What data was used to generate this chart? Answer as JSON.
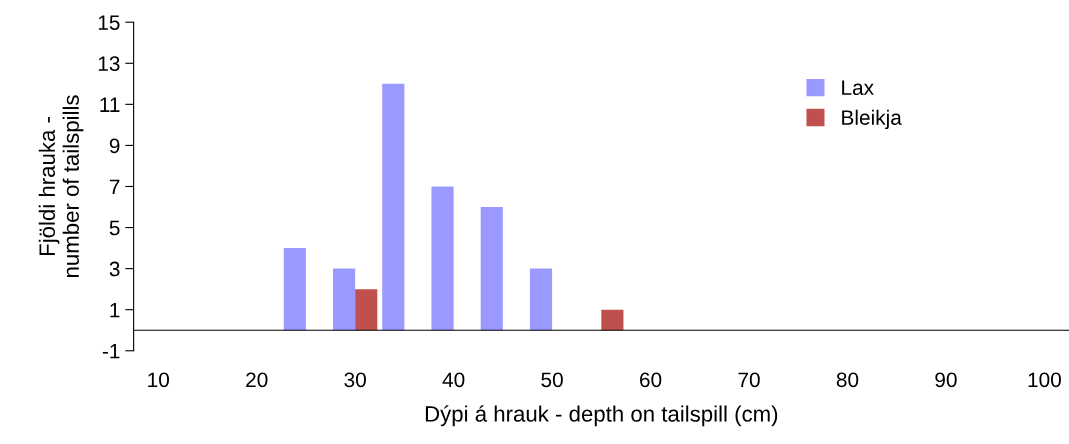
{
  "chart_data": {
    "type": "bar",
    "xlabel": "Dýpi á hrauk - depth on tailspill (cm)",
    "ylabel": "Fjöldi hrauka -\nnumber of tailspills",
    "categories": [
      "10",
      null,
      "20",
      null,
      "30",
      null,
      "40",
      null,
      "50",
      null,
      "60",
      null,
      "70",
      null,
      "80",
      null,
      "90",
      null,
      "100"
    ],
    "series": [
      {
        "name": "Lax",
        "color": "#9999ff",
        "values": [
          null,
          null,
          null,
          4,
          3,
          12,
          7,
          6,
          3,
          null,
          null,
          null,
          null,
          null,
          null,
          null,
          null,
          null,
          null
        ]
      },
      {
        "name": "Bleikja",
        "color": "#c0504d",
        "values": [
          null,
          null,
          null,
          null,
          2,
          null,
          null,
          null,
          null,
          1,
          null,
          null,
          null,
          null,
          null,
          null,
          null,
          null,
          null
        ]
      }
    ],
    "ylim": [
      -1,
      15
    ],
    "yticks": [
      -1,
      1,
      3,
      5,
      7,
      9,
      11,
      13,
      15
    ],
    "grid": false,
    "legend": "right"
  }
}
